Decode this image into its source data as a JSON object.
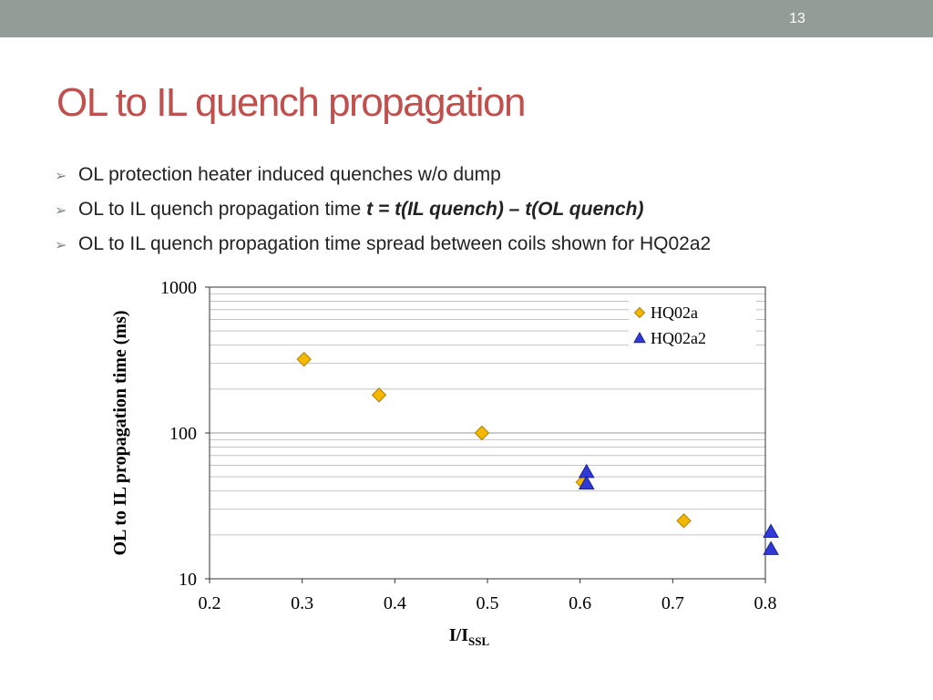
{
  "slide": {
    "number": "13",
    "title": "OL to IL quench propagation",
    "colors": {
      "topbar": "#939d97",
      "title": "#c0504d",
      "text": "#222222"
    }
  },
  "bullets": [
    {
      "text": "OL protection heater induced quenches w/o dump",
      "formula": ""
    },
    {
      "text": "OL to IL quench propagation time",
      "formula": "t = t(IL quench) – t(OL quench)"
    },
    {
      "text": "OL to IL quench propagation time spread between coils shown for HQ02a2",
      "formula": ""
    }
  ],
  "chart_data": {
    "type": "scatter",
    "title": "",
    "xlabel": "I/I",
    "xlabel_subscript": "SSL",
    "ylabel": "OL to IL propagation time (ms)",
    "xlim": [
      0.2,
      0.8
    ],
    "ylim": [
      10,
      1000
    ],
    "yscale": "log",
    "x_ticks": [
      "0.2",
      "0.3",
      "0.4",
      "0.5",
      "0.6",
      "0.7",
      "0.8"
    ],
    "y_ticks": [
      "10",
      "100",
      "1000"
    ],
    "grid": true,
    "legend_position": "top-right",
    "series": [
      {
        "name": "HQ02a",
        "marker": "diamond",
        "color": "#f5b800",
        "x": [
          0.302,
          0.383,
          0.494,
          0.603,
          0.712
        ],
        "y": [
          320,
          182,
          100,
          46,
          25
        ]
      },
      {
        "name": "HQ02a2",
        "marker": "triangle",
        "color": "#2f3ad8",
        "x": [
          0.607,
          0.607,
          0.806,
          0.806
        ],
        "y": [
          54,
          45,
          21,
          16
        ]
      }
    ]
  }
}
